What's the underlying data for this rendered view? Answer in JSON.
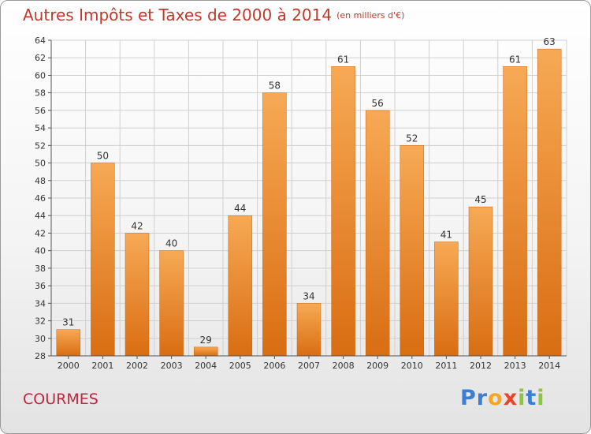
{
  "title": "Autres Impôts et Taxes de 2000 à 2014",
  "unit_note": "(en milliers d'€)",
  "town": "COURMES",
  "brand": {
    "letters": [
      "P",
      "r",
      "o",
      "x",
      "i",
      "t",
      "i"
    ],
    "colors": [
      "#3a7fd5",
      "#3a7fd5",
      "#f5a623",
      "#e8432d",
      "#8cc63f",
      "#3a7fd5",
      "#8cc63f"
    ]
  },
  "colors": {
    "bar_top": "#f7a955",
    "bar_bottom": "#d96d12",
    "grid": "#d0d0d0",
    "axis": "#555555"
  },
  "chart_data": {
    "type": "bar",
    "categories": [
      "2000",
      "2001",
      "2002",
      "2003",
      "2004",
      "2005",
      "2006",
      "2007",
      "2008",
      "2009",
      "2010",
      "2011",
      "2012",
      "2013",
      "2014"
    ],
    "values": [
      31,
      50,
      42,
      40,
      29,
      44,
      58,
      34,
      61,
      56,
      52,
      41,
      45,
      61,
      63
    ],
    "ylim": [
      28,
      64
    ],
    "yticks": [
      28,
      30,
      32,
      34,
      36,
      38,
      40,
      42,
      44,
      46,
      48,
      50,
      52,
      54,
      56,
      58,
      60,
      62,
      64
    ],
    "data_labels": true,
    "grid": true,
    "xlabel": "",
    "ylabel": ""
  }
}
